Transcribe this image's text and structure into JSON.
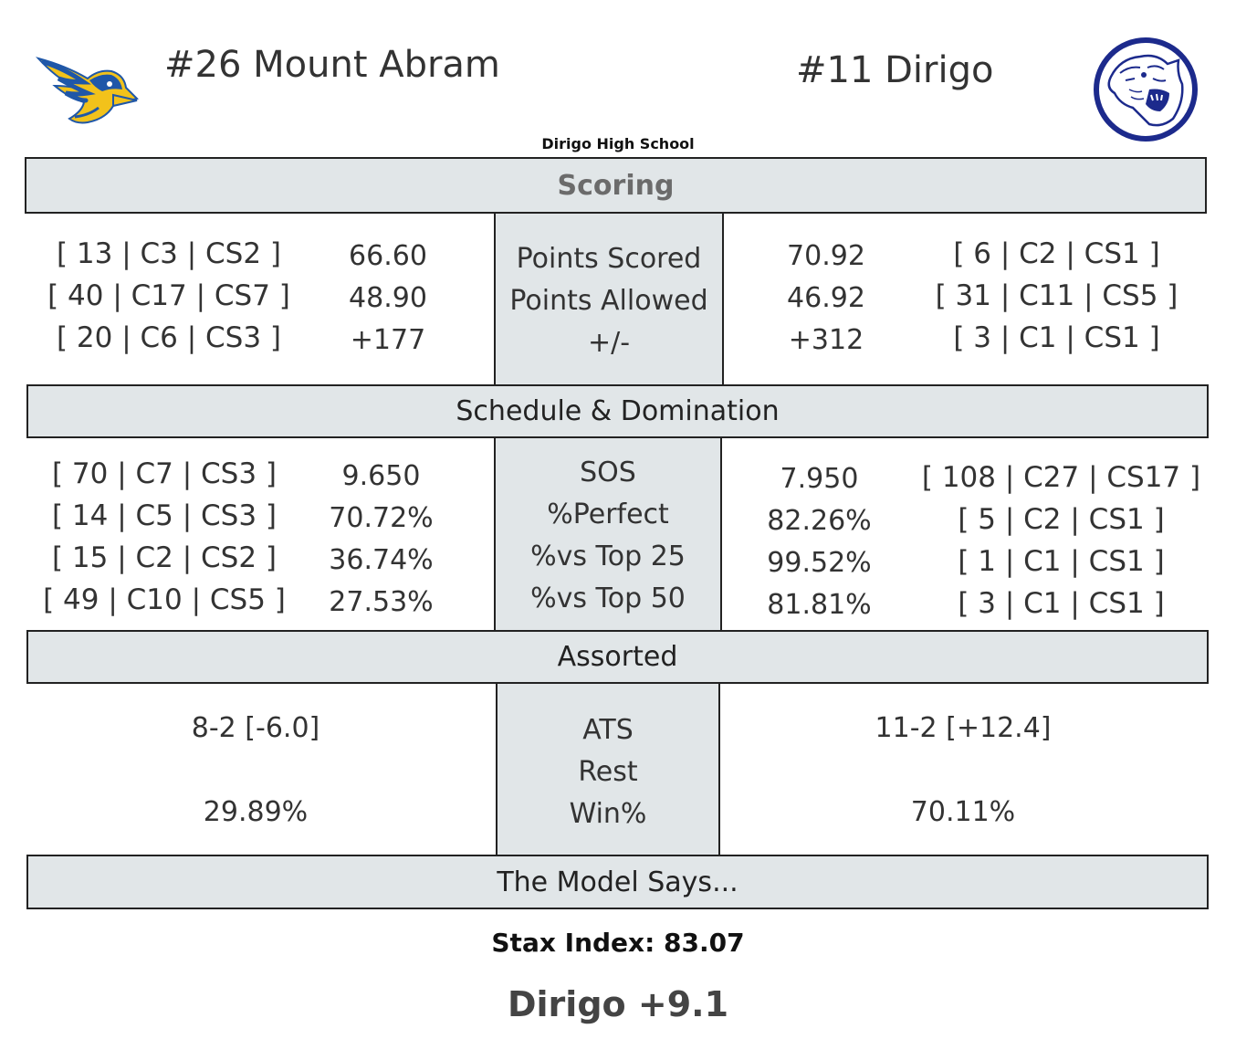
{
  "header": {
    "away_title": "#26 Mount Abram",
    "home_title": "#11 Dirigo",
    "venue": "Dirigo High School",
    "away_logo_icon": "blue-jay-bird-icon",
    "home_logo_icon": "cougar-head-icon"
  },
  "colors": {
    "band_fill": "#e1e6e8",
    "border": "#222222",
    "away_logo_blue": "#1f57a8",
    "away_logo_yellow": "#f2c21b",
    "home_logo_navy": "#1c2a8c"
  },
  "sections": {
    "scoring": {
      "title": "Scoring",
      "labels": [
        "Points Scored",
        "Points Allowed",
        "+/-"
      ],
      "away_ranks": [
        "[ 13 | C3 | CS2 ]",
        "[ 40 | C17 | CS7 ]",
        "[ 20 | C6 | CS3 ]"
      ],
      "away_values": [
        "66.60",
        "48.90",
        "+177"
      ],
      "home_values": [
        "70.92",
        "46.92",
        "+312"
      ],
      "home_ranks": [
        "[ 6 | C2 | CS1 ]",
        "[ 31 | C11 | CS5 ]",
        "[ 3 | C1 | CS1 ]"
      ]
    },
    "schedule": {
      "title": "Schedule & Domination",
      "labels": [
        "SOS",
        "%Perfect",
        "%vs Top 25",
        "%vs Top 50"
      ],
      "away_ranks": [
        "[ 70 | C7 | CS3 ]",
        "[ 14 | C5 | CS3 ]",
        "[ 15 | C2 | CS2 ]",
        "[ 49 | C10 | CS5 ]"
      ],
      "away_values": [
        "9.650",
        "70.72%",
        "36.74%",
        "27.53%"
      ],
      "home_values": [
        "7.950",
        "82.26%",
        "99.52%",
        "81.81%"
      ],
      "home_ranks": [
        "[ 108 | C27 | CS17 ]",
        "[ 5 | C2 | CS1 ]",
        "[ 1 | C1 | CS1 ]",
        "[ 3 | C1 | CS1 ]"
      ]
    },
    "assorted": {
      "title": "Assorted",
      "labels": [
        "ATS",
        "Rest",
        "Win%"
      ],
      "away_ats": "8-2  [-6.0]",
      "away_win": "29.89%",
      "home_ats": "11-2  [+12.4]",
      "home_win": "70.11%"
    },
    "model": {
      "title": "The Model Says...",
      "stax_index": "Stax Index: 83.07",
      "prediction": "Dirigo +9.1"
    }
  }
}
